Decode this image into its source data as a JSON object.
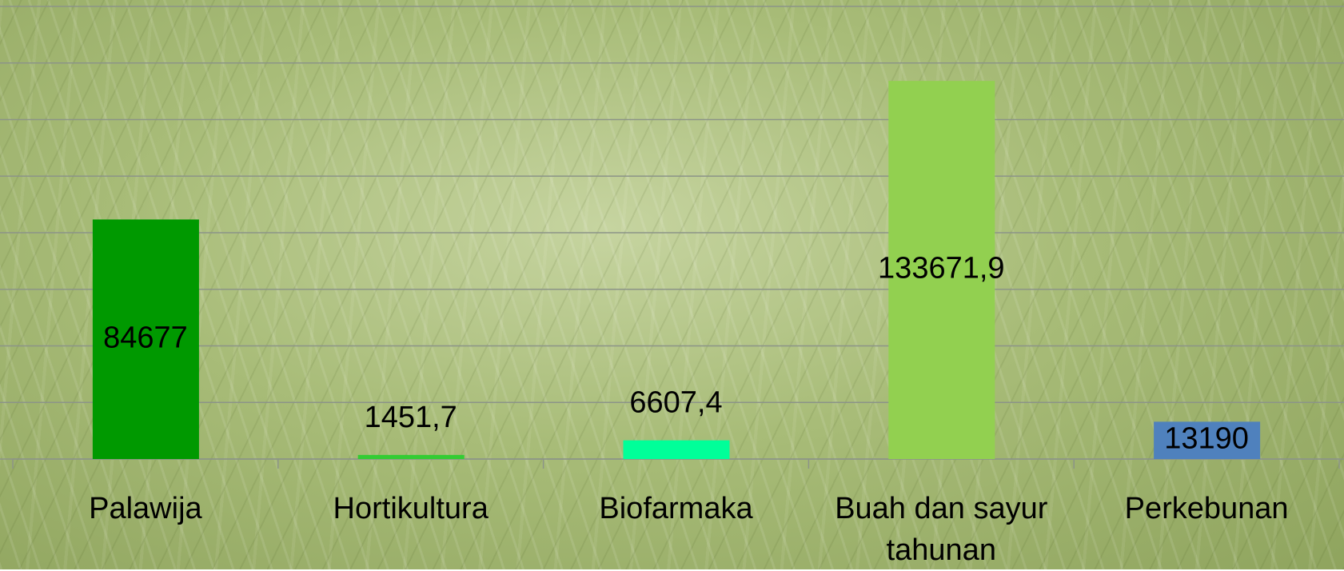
{
  "chart_data": {
    "type": "bar",
    "categories": [
      "Palawija",
      "Hortikultura",
      "Biofarmaka",
      "Buah dan sayur tahunan",
      "Perkebunan"
    ],
    "values": [
      84677,
      1451.7,
      6607.4,
      133671.9,
      13190
    ],
    "value_labels": [
      "84677",
      "1451,7",
      "6607,4",
      "133671,9",
      "13190"
    ],
    "colors": [
      "#009900",
      "#33cc33",
      "#00ff99",
      "#92d050",
      "#4f81bd"
    ],
    "ylim": [
      0,
      160000
    ],
    "yticks": [
      0,
      20000,
      40000,
      60000,
      80000,
      100000,
      120000,
      140000,
      160000
    ],
    "grid": true
  }
}
